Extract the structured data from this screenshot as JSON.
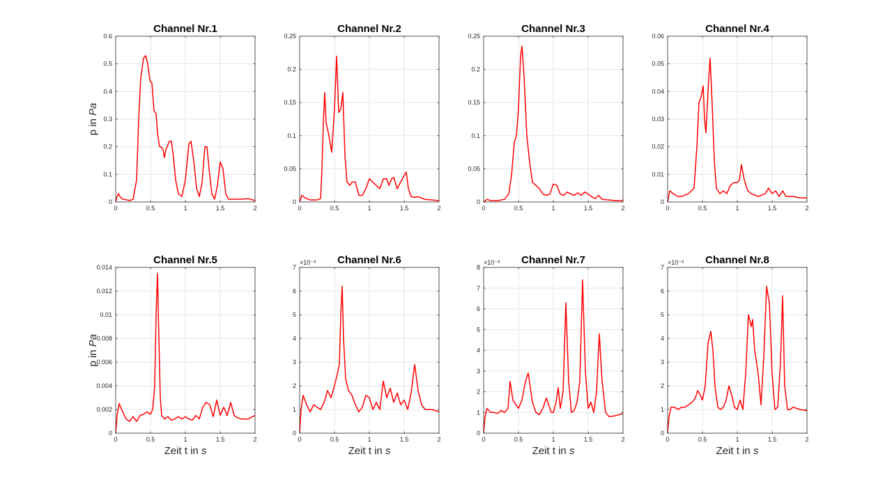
{
  "figure": {
    "background": "#ffffff",
    "line_color": "#ff0000",
    "grid_color": "#e6e6e6",
    "axis_color": "#262626"
  },
  "chart_data": [
    {
      "type": "line",
      "title": "Channel Nr.1",
      "ylabel_text": "p in ",
      "ylabel_unit": "Pa",
      "xlabel_text": "",
      "xlabel_unit": "",
      "exponent_label": "",
      "xlim": [
        0,
        2
      ],
      "ylim": [
        0,
        0.6
      ],
      "xticks": [
        0,
        0.5,
        1,
        1.5,
        2
      ],
      "xtick_labels": [
        "0",
        "0.5",
        "1",
        "1.5",
        "2"
      ],
      "yticks": [
        0,
        0.1,
        0.2,
        0.3,
        0.4,
        0.5,
        0.6
      ],
      "ytick_labels": [
        "0",
        "0.1",
        "0.2",
        "0.3",
        "0.4",
        "0.5",
        "0.6"
      ],
      "grid": true,
      "series": [
        {
          "x": [
            0,
            0.02,
            0.04,
            0.06,
            0.1,
            0.15,
            0.2,
            0.25,
            0.3,
            0.33,
            0.36,
            0.4,
            0.43,
            0.46,
            0.49,
            0.52,
            0.55,
            0.58,
            0.6,
            0.63,
            0.65,
            0.68,
            0.7,
            0.72,
            0.74,
            0.77,
            0.8,
            0.83,
            0.86,
            0.9,
            0.95,
            1.0,
            1.05,
            1.08,
            1.12,
            1.16,
            1.2,
            1.24,
            1.28,
            1.31,
            1.34,
            1.38,
            1.42,
            1.46,
            1.5,
            1.54,
            1.58,
            1.62,
            1.7,
            1.8,
            1.9,
            2.0
          ],
          "y": [
            0.0,
            0.02,
            0.03,
            0.02,
            0.01,
            0.008,
            0.005,
            0.01,
            0.08,
            0.3,
            0.45,
            0.52,
            0.53,
            0.5,
            0.44,
            0.43,
            0.33,
            0.32,
            0.25,
            0.2,
            0.2,
            0.19,
            0.16,
            0.19,
            0.2,
            0.22,
            0.22,
            0.16,
            0.08,
            0.03,
            0.02,
            0.08,
            0.21,
            0.22,
            0.15,
            0.05,
            0.02,
            0.07,
            0.2,
            0.2,
            0.12,
            0.03,
            0.01,
            0.06,
            0.145,
            0.12,
            0.03,
            0.01,
            0.01,
            0.01,
            0.012,
            0.005
          ]
        }
      ]
    },
    {
      "type": "line",
      "title": "Channel Nr.2",
      "ylabel_text": "",
      "ylabel_unit": "",
      "xlabel_text": "",
      "xlabel_unit": "",
      "exponent_label": "",
      "xlim": [
        0,
        2
      ],
      "ylim": [
        0,
        0.25
      ],
      "xticks": [
        0,
        0.5,
        1,
        1.5,
        2
      ],
      "xtick_labels": [
        "0",
        "0.5",
        "1",
        "1.5",
        "2"
      ],
      "yticks": [
        0,
        0.05,
        0.1,
        0.15,
        0.2,
        0.25
      ],
      "ytick_labels": [
        "0",
        "0.05",
        "0.1",
        "0.15",
        "0.2",
        "0.25"
      ],
      "grid": true,
      "series": [
        {
          "x": [
            0,
            0.03,
            0.08,
            0.15,
            0.2,
            0.25,
            0.3,
            0.32,
            0.34,
            0.36,
            0.38,
            0.42,
            0.46,
            0.5,
            0.53,
            0.56,
            0.59,
            0.62,
            0.65,
            0.68,
            0.72,
            0.75,
            0.8,
            0.85,
            0.9,
            0.95,
            1.0,
            1.05,
            1.1,
            1.15,
            1.2,
            1.25,
            1.28,
            1.32,
            1.35,
            1.4,
            1.45,
            1.5,
            1.53,
            1.56,
            1.6,
            1.65,
            1.7,
            1.8,
            1.9,
            2.0
          ],
          "y": [
            0.0,
            0.01,
            0.006,
            0.003,
            0.003,
            0.003,
            0.005,
            0.05,
            0.12,
            0.165,
            0.12,
            0.1,
            0.075,
            0.14,
            0.22,
            0.135,
            0.14,
            0.165,
            0.07,
            0.03,
            0.025,
            0.03,
            0.03,
            0.01,
            0.01,
            0.02,
            0.035,
            0.03,
            0.025,
            0.02,
            0.035,
            0.035,
            0.025,
            0.035,
            0.037,
            0.02,
            0.03,
            0.04,
            0.045,
            0.02,
            0.008,
            0.007,
            0.008,
            0.004,
            0.003,
            0.002
          ]
        }
      ]
    },
    {
      "type": "line",
      "title": "Channel Nr.3",
      "ylabel_text": "",
      "ylabel_unit": "",
      "xlabel_text": "",
      "xlabel_unit": "",
      "exponent_label": "",
      "xlim": [
        0,
        2
      ],
      "ylim": [
        0,
        0.25
      ],
      "xticks": [
        0,
        0.5,
        1,
        1.5,
        2
      ],
      "xtick_labels": [
        "0",
        "0.5",
        "1",
        "1.5",
        "2"
      ],
      "yticks": [
        0,
        0.05,
        0.1,
        0.15,
        0.2,
        0.25
      ],
      "ytick_labels": [
        "0",
        "0.05",
        "0.1",
        "0.15",
        "0.2",
        "0.25"
      ],
      "grid": true,
      "series": [
        {
          "x": [
            0,
            0.05,
            0.1,
            0.2,
            0.3,
            0.36,
            0.4,
            0.44,
            0.47,
            0.5,
            0.53,
            0.55,
            0.58,
            0.62,
            0.66,
            0.7,
            0.75,
            0.8,
            0.85,
            0.9,
            0.95,
            1.0,
            1.05,
            1.1,
            1.15,
            1.2,
            1.25,
            1.3,
            1.35,
            1.4,
            1.45,
            1.5,
            1.55,
            1.6,
            1.65,
            1.7,
            1.8,
            1.9,
            2.0
          ],
          "y": [
            0.0,
            0.004,
            0.002,
            0.002,
            0.004,
            0.012,
            0.04,
            0.09,
            0.1,
            0.14,
            0.22,
            0.235,
            0.19,
            0.1,
            0.06,
            0.03,
            0.025,
            0.02,
            0.012,
            0.01,
            0.012,
            0.027,
            0.025,
            0.012,
            0.01,
            0.015,
            0.012,
            0.01,
            0.014,
            0.01,
            0.015,
            0.012,
            0.008,
            0.005,
            0.01,
            0.004,
            0.003,
            0.002,
            0.002
          ]
        }
      ]
    },
    {
      "type": "line",
      "title": "Channel Nr.4",
      "ylabel_text": "",
      "ylabel_unit": "",
      "xlabel_text": "",
      "xlabel_unit": "",
      "exponent_label": "",
      "xlim": [
        0,
        2
      ],
      "ylim": [
        0,
        0.06
      ],
      "xticks": [
        0,
        0.5,
        1,
        1.5,
        2
      ],
      "xtick_labels": [
        "0",
        "0.5",
        "1",
        "1.5",
        "2"
      ],
      "yticks": [
        0,
        0.01,
        0.02,
        0.03,
        0.04,
        0.05,
        0.06
      ],
      "ytick_labels": [
        "0",
        "0.01",
        "0.02",
        "0.03",
        "0.04",
        "0.05",
        "0.06"
      ],
      "grid": true,
      "series": [
        {
          "x": [
            0,
            0.03,
            0.08,
            0.15,
            0.2,
            0.25,
            0.3,
            0.34,
            0.38,
            0.42,
            0.45,
            0.48,
            0.51,
            0.53,
            0.55,
            0.57,
            0.59,
            0.61,
            0.64,
            0.67,
            0.7,
            0.75,
            0.8,
            0.85,
            0.9,
            0.95,
            1.0,
            1.03,
            1.06,
            1.1,
            1.15,
            1.2,
            1.3,
            1.4,
            1.45,
            1.5,
            1.55,
            1.6,
            1.65,
            1.7,
            1.8,
            1.9,
            2.0
          ],
          "y": [
            0.0,
            0.004,
            0.003,
            0.002,
            0.002,
            0.0025,
            0.003,
            0.004,
            0.005,
            0.02,
            0.036,
            0.038,
            0.042,
            0.03,
            0.025,
            0.035,
            0.045,
            0.052,
            0.035,
            0.015,
            0.005,
            0.003,
            0.004,
            0.003,
            0.006,
            0.007,
            0.007,
            0.008,
            0.0135,
            0.008,
            0.004,
            0.003,
            0.002,
            0.003,
            0.005,
            0.003,
            0.004,
            0.002,
            0.004,
            0.002,
            0.002,
            0.0015,
            0.0015
          ]
        }
      ]
    },
    {
      "type": "line",
      "title": "Channel Nr.5",
      "ylabel_text": "p in ",
      "ylabel_unit": "Pa",
      "xlabel_text": "Zeit t in ",
      "xlabel_unit": "s",
      "exponent_label": "",
      "xlim": [
        0,
        2
      ],
      "ylim": [
        0,
        0.014
      ],
      "xticks": [
        0,
        0.5,
        1,
        1.5,
        2
      ],
      "xtick_labels": [
        "0",
        "0.5",
        "1",
        "1.5",
        "2"
      ],
      "yticks": [
        0,
        0.002,
        0.004,
        0.006,
        0.008,
        0.01,
        0.012,
        0.014
      ],
      "ytick_labels": [
        "0",
        "0.002",
        "0.004",
        "0.006",
        "0.008",
        "0.01",
        "0.012",
        "0.014"
      ],
      "grid": true,
      "series": [
        {
          "x": [
            0,
            0.02,
            0.05,
            0.1,
            0.15,
            0.2,
            0.25,
            0.3,
            0.35,
            0.4,
            0.45,
            0.5,
            0.53,
            0.56,
            0.58,
            0.6,
            0.62,
            0.64,
            0.66,
            0.7,
            0.75,
            0.8,
            0.85,
            0.9,
            0.95,
            1.0,
            1.05,
            1.1,
            1.15,
            1.2,
            1.25,
            1.3,
            1.35,
            1.4,
            1.45,
            1.5,
            1.55,
            1.6,
            1.65,
            1.7,
            1.75,
            1.8,
            1.9,
            2.0
          ],
          "y": [
            0.0,
            0.0015,
            0.0025,
            0.0018,
            0.0012,
            0.001,
            0.0014,
            0.001,
            0.0015,
            0.0016,
            0.0018,
            0.0016,
            0.002,
            0.004,
            0.01,
            0.0135,
            0.008,
            0.003,
            0.0015,
            0.0012,
            0.0014,
            0.0011,
            0.0012,
            0.0014,
            0.0012,
            0.0014,
            0.0012,
            0.0011,
            0.0015,
            0.0012,
            0.0022,
            0.0026,
            0.0024,
            0.0014,
            0.0028,
            0.0015,
            0.0022,
            0.0015,
            0.0026,
            0.0015,
            0.0013,
            0.0012,
            0.0012,
            0.0015
          ]
        }
      ]
    },
    {
      "type": "line",
      "title": "Channel Nr.6",
      "ylabel_text": "",
      "ylabel_unit": "",
      "xlabel_text": "Zeit t in ",
      "xlabel_unit": "s",
      "exponent_label": "×10⁻³",
      "xlim": [
        0,
        2
      ],
      "ylim": [
        0,
        7
      ],
      "xticks": [
        0,
        0.5,
        1,
        1.5,
        2
      ],
      "xtick_labels": [
        "0",
        "0.5",
        "1",
        "1.5",
        "2"
      ],
      "yticks": [
        0,
        1,
        2,
        3,
        4,
        5,
        6,
        7
      ],
      "ytick_labels": [
        "0",
        "1",
        "2",
        "3",
        "4",
        "5",
        "6",
        "7"
      ],
      "grid": true,
      "series": [
        {
          "x": [
            0,
            0.02,
            0.05,
            0.1,
            0.15,
            0.2,
            0.25,
            0.3,
            0.35,
            0.4,
            0.45,
            0.5,
            0.54,
            0.57,
            0.59,
            0.61,
            0.63,
            0.66,
            0.7,
            0.75,
            0.8,
            0.85,
            0.9,
            0.95,
            1.0,
            1.05,
            1.1,
            1.15,
            1.2,
            1.25,
            1.3,
            1.35,
            1.4,
            1.45,
            1.5,
            1.55,
            1.6,
            1.65,
            1.7,
            1.75,
            1.8,
            1.9,
            2.0
          ],
          "y": [
            0.0,
            1.0,
            1.6,
            1.2,
            0.9,
            1.2,
            1.1,
            1.0,
            1.3,
            1.8,
            1.5,
            2.0,
            2.5,
            2.9,
            5.0,
            6.2,
            4.0,
            2.3,
            1.8,
            1.6,
            1.2,
            0.9,
            1.1,
            1.6,
            1.5,
            1.0,
            1.3,
            1.0,
            2.2,
            1.5,
            1.9,
            1.3,
            1.7,
            1.2,
            1.4,
            1.0,
            1.7,
            2.9,
            1.8,
            1.2,
            1.0,
            1.0,
            0.9
          ]
        }
      ]
    },
    {
      "type": "line",
      "title": "Channel Nr.7",
      "ylabel_text": "",
      "ylabel_unit": "",
      "xlabel_text": "Zeit t in ",
      "xlabel_unit": "s",
      "exponent_label": "×10⁻³",
      "xlim": [
        0,
        2
      ],
      "ylim": [
        0,
        8
      ],
      "xticks": [
        0,
        0.5,
        1,
        1.5,
        2
      ],
      "xtick_labels": [
        "0",
        "0.5",
        "1",
        "1.5",
        "2"
      ],
      "yticks": [
        0,
        1,
        2,
        3,
        4,
        5,
        6,
        7,
        8
      ],
      "ytick_labels": [
        "0",
        "1",
        "2",
        "3",
        "4",
        "5",
        "6",
        "7",
        "8"
      ],
      "grid": true,
      "series": [
        {
          "x": [
            0,
            0.02,
            0.05,
            0.1,
            0.15,
            0.2,
            0.25,
            0.3,
            0.35,
            0.38,
            0.42,
            0.46,
            0.5,
            0.55,
            0.6,
            0.64,
            0.67,
            0.7,
            0.75,
            0.8,
            0.85,
            0.9,
            0.93,
            0.97,
            1.0,
            1.04,
            1.07,
            1.1,
            1.14,
            1.18,
            1.22,
            1.26,
            1.3,
            1.34,
            1.38,
            1.42,
            1.46,
            1.5,
            1.54,
            1.58,
            1.62,
            1.66,
            1.7,
            1.75,
            1.8,
            1.9,
            2.0
          ],
          "y": [
            0.0,
            0.8,
            1.2,
            1.0,
            1.0,
            0.95,
            1.1,
            1.0,
            1.2,
            2.5,
            1.6,
            1.4,
            1.2,
            1.6,
            2.5,
            2.9,
            2.2,
            1.5,
            1.0,
            0.9,
            1.2,
            1.7,
            1.4,
            1.0,
            1.0,
            1.5,
            2.2,
            1.2,
            2.0,
            6.3,
            2.5,
            1.0,
            1.1,
            1.5,
            2.5,
            7.4,
            3.0,
            1.2,
            1.5,
            1.0,
            2.0,
            4.8,
            2.5,
            1.0,
            0.8,
            0.85,
            0.95
          ]
        }
      ]
    },
    {
      "type": "line",
      "title": "Channel Nr.8",
      "ylabel_text": "",
      "ylabel_unit": "",
      "xlabel_text": "Zeit t in ",
      "xlabel_unit": "s",
      "exponent_label": "×10⁻³",
      "xlim": [
        0,
        2
      ],
      "ylim": [
        0,
        7
      ],
      "xticks": [
        0,
        0.5,
        1,
        1.5,
        2
      ],
      "xtick_labels": [
        "0",
        "0.5",
        "1",
        "1.5",
        "2"
      ],
      "yticks": [
        0,
        1,
        2,
        3,
        4,
        5,
        6,
        7
      ],
      "ytick_labels": [
        "0",
        "1",
        "2",
        "3",
        "4",
        "5",
        "6",
        "7"
      ],
      "grid": true,
      "series": [
        {
          "x": [
            0,
            0.02,
            0.05,
            0.1,
            0.15,
            0.2,
            0.25,
            0.3,
            0.35,
            0.4,
            0.43,
            0.47,
            0.5,
            0.54,
            0.58,
            0.62,
            0.65,
            0.68,
            0.72,
            0.76,
            0.8,
            0.84,
            0.88,
            0.92,
            0.96,
            1.0,
            1.04,
            1.08,
            1.12,
            1.16,
            1.2,
            1.22,
            1.25,
            1.3,
            1.34,
            1.38,
            1.42,
            1.46,
            1.5,
            1.54,
            1.58,
            1.62,
            1.65,
            1.68,
            1.72,
            1.76,
            1.8,
            1.9,
            2.0
          ],
          "y": [
            0.0,
            0.7,
            1.1,
            1.1,
            1.0,
            1.1,
            1.1,
            1.2,
            1.3,
            1.5,
            1.8,
            1.6,
            1.4,
            2.0,
            3.8,
            4.3,
            3.5,
            2.0,
            1.1,
            1.0,
            1.1,
            1.4,
            2.0,
            1.6,
            1.1,
            1.0,
            1.4,
            1.0,
            2.5,
            5.0,
            4.5,
            4.8,
            3.5,
            2.5,
            1.2,
            3.2,
            6.2,
            5.5,
            2.5,
            1.0,
            1.1,
            3.0,
            5.8,
            2.0,
            1.0,
            1.0,
            1.1,
            1.0,
            0.95
          ]
        }
      ]
    }
  ]
}
